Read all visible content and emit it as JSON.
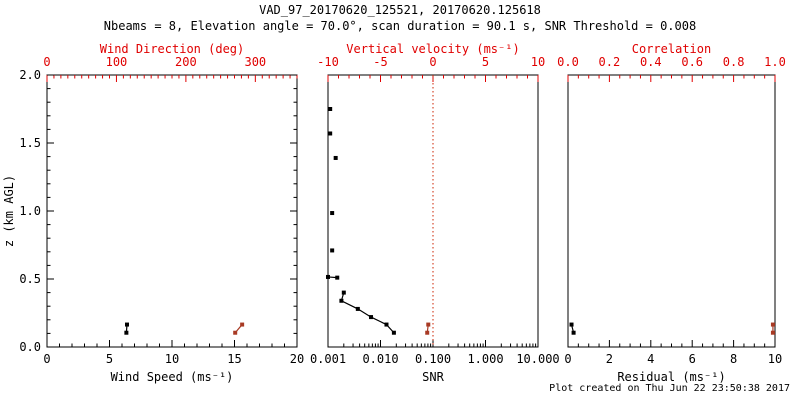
{
  "title": "VAD_97_20170620_125521, 20170620.125618",
  "subtitle": "Nbeams = 8, Elevation angle = 70.0°, scan duration = 90.1 s, SNR Threshold = 0.008",
  "footer": "Plot created on Thu Jun 22 23:50:38 2017",
  "colors": {
    "frame": "#000000",
    "axis_red": "#e00000",
    "data_black": "#000000",
    "data_red": "#a83a24",
    "ref_line_red": "#cc2200",
    "background": "#ffffff"
  },
  "chart_data": {
    "type": "scatter",
    "grid": false,
    "y_axis": {
      "label": "z (km AGL)",
      "range": [
        0,
        2
      ],
      "ticks": [
        0,
        0.5,
        1,
        1.5,
        2
      ],
      "tick_labels": [
        "0.0",
        "0.5",
        "1.0",
        "1.5",
        "2.0"
      ],
      "minor_step": 0.1
    },
    "panels": [
      {
        "name": "wind",
        "show_y_ticks": true,
        "show_y_labels": true,
        "bottom_axis": {
          "label": "Wind Speed (ms⁻¹)",
          "range": [
            0,
            20
          ],
          "ticks": [
            0,
            5,
            10,
            15,
            20
          ],
          "tick_labels": [
            "0",
            "5",
            "10",
            "15",
            "20"
          ],
          "minor_step": 1,
          "log": false,
          "color": "#000000"
        },
        "top_axis": {
          "label": "Wind Direction (deg)",
          "range": [
            0,
            360
          ],
          "ticks": [
            0,
            100,
            200,
            300
          ],
          "tick_labels": [
            "0",
            "100",
            "200",
            "300"
          ],
          "minor_step": 10,
          "log": false,
          "color": "#e00000"
        },
        "series": [
          {
            "name": "wind-speed",
            "axis": "bottom",
            "color": "#000000",
            "segments": [
              [
                [
                  6.4,
                  0.165
                ],
                [
                  6.35,
                  0.105
                ]
              ]
            ]
          },
          {
            "name": "wind-direction",
            "axis": "top",
            "color": "#a83a24",
            "segments": [
              [
                [
                  281,
                  0.165
                ],
                [
                  271,
                  0.105
                ]
              ]
            ]
          }
        ]
      },
      {
        "name": "snr",
        "show_y_ticks": false,
        "show_y_labels": false,
        "bottom_axis": {
          "label": "SNR",
          "range": [
            0.001,
            10
          ],
          "ticks": [
            0.001,
            0.01,
            0.1,
            1,
            10
          ],
          "tick_labels": [
            "0.001",
            "0.010",
            "0.100",
            "1.000",
            "10.000"
          ],
          "log": true,
          "color": "#000000"
        },
        "top_axis": {
          "label": "Vertical velocity (ms⁻¹)",
          "range": [
            -10,
            10
          ],
          "ticks": [
            -10,
            -5,
            0,
            5,
            10
          ],
          "tick_labels": [
            "-10",
            "-5",
            "0",
            "5",
            "10"
          ],
          "minor_step": 1,
          "log": false,
          "color": "#e00000"
        },
        "ref_line": {
          "axis": "top",
          "value": 0,
          "style": "dotted",
          "color": "#cc2200"
        },
        "series": [
          {
            "name": "snr-profile",
            "axis": "bottom",
            "color": "#000000",
            "segments": [
              [
                [
                  0.0011,
                  1.75
                ]
              ],
              [
                [
                  0.0011,
                  1.57
                ]
              ],
              [
                [
                  0.0014,
                  1.39
                ]
              ],
              [
                [
                  0.0012,
                  0.985
                ]
              ],
              [
                [
                  0.0012,
                  0.71
                ]
              ],
              [
                [
                  0.001,
                  0.515
                ],
                [
                  0.0015,
                  0.51
                ]
              ],
              [
                [
                  0.002,
                  0.4
                ],
                [
                  0.0018,
                  0.34
                ],
                [
                  0.0037,
                  0.28
                ],
                [
                  0.0066,
                  0.22
                ],
                [
                  0.013,
                  0.165
                ],
                [
                  0.018,
                  0.105
                ]
              ]
            ]
          },
          {
            "name": "vertical-velocity",
            "axis": "top",
            "color": "#a83a24",
            "segments": [
              [
                [
                  -0.45,
                  0.165
                ],
                [
                  -0.55,
                  0.105
                ]
              ]
            ]
          }
        ]
      },
      {
        "name": "residual",
        "show_y_ticks": false,
        "show_y_labels": false,
        "bottom_axis": {
          "label": "Residual (ms⁻¹)",
          "range": [
            0,
            10
          ],
          "ticks": [
            0,
            2,
            4,
            6,
            8,
            10
          ],
          "tick_labels": [
            "0",
            "2",
            "4",
            "6",
            "8",
            "10"
          ],
          "minor_step": 0.5,
          "log": false,
          "color": "#000000"
        },
        "top_axis": {
          "label": "Correlation",
          "range": [
            0,
            1
          ],
          "ticks": [
            0,
            0.2,
            0.4,
            0.6,
            0.8,
            1
          ],
          "tick_labels": [
            "0.0",
            "0.2",
            "0.4",
            "0.6",
            "0.8",
            "1.0"
          ],
          "minor_step": 0.05,
          "log": false,
          "color": "#e00000"
        },
        "series": [
          {
            "name": "residual",
            "axis": "bottom",
            "color": "#000000",
            "segments": [
              [
                [
                  0.17,
                  0.165
                ],
                [
                  0.27,
                  0.105
                ]
              ]
            ]
          },
          {
            "name": "correlation",
            "axis": "top",
            "color": "#a83a24",
            "segments": [
              [
                [
                  0.99,
                  0.165
                ],
                [
                  0.99,
                  0.105
                ]
              ]
            ]
          }
        ]
      }
    ]
  }
}
